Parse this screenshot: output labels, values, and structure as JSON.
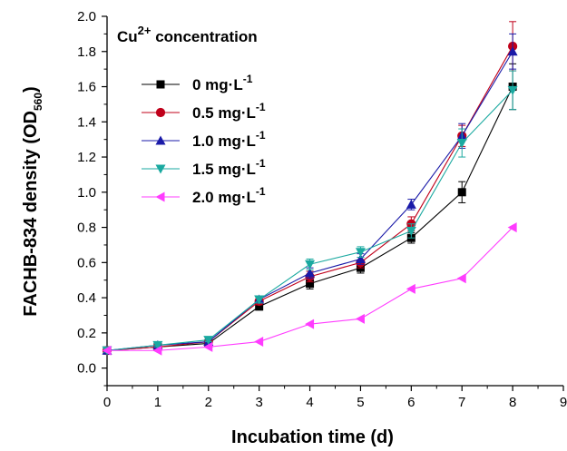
{
  "chart_data": {
    "type": "line",
    "xlabel": "Incubation time (d)",
    "ylabel_main": "FACHB-834 density (OD",
    "ylabel_sub": "560",
    "ylabel_close": ")",
    "xlim": [
      0,
      9
    ],
    "ylim": [
      -0.1,
      2.0
    ],
    "x_ticks": [
      0,
      1,
      2,
      3,
      4,
      5,
      6,
      7,
      8,
      9
    ],
    "y_ticks": [
      0.0,
      0.2,
      0.4,
      0.6,
      0.8,
      1.0,
      1.2,
      1.4,
      1.6,
      1.8,
      2.0
    ],
    "x_tick_labels": [
      "0",
      "1",
      "2",
      "3",
      "4",
      "5",
      "6",
      "7",
      "8",
      "9"
    ],
    "y_tick_labels": [
      "0.0",
      "0.2",
      "0.4",
      "0.6",
      "0.8",
      "1.0",
      "1.2",
      "1.4",
      "1.6",
      "1.8",
      "2.0"
    ],
    "grid": false,
    "legend_title_main": "Cu",
    "legend_title_sup": "2+",
    "legend_title_rest": " concentration",
    "legend_placement": "top-left",
    "x": [
      0,
      1,
      2,
      3,
      4,
      5,
      6,
      7,
      8
    ],
    "series": [
      {
        "label_main": "0   mg·L",
        "label_sup": "-1",
        "color": "#000000",
        "marker": "square",
        "values": [
          0.1,
          0.12,
          0.14,
          0.35,
          0.48,
          0.57,
          0.74,
          1.0,
          1.6
        ],
        "errors": [
          0.01,
          0.01,
          0.01,
          0.02,
          0.03,
          0.03,
          0.03,
          0.06,
          0.13
        ]
      },
      {
        "label_main": "0.5 mg·L",
        "label_sup": "-1",
        "color": "#c0001a",
        "marker": "circle",
        "values": [
          0.1,
          0.12,
          0.15,
          0.38,
          0.52,
          0.6,
          0.82,
          1.32,
          1.83
        ],
        "errors": [
          0.01,
          0.01,
          0.01,
          0.02,
          0.03,
          0.03,
          0.04,
          0.06,
          0.14
        ]
      },
      {
        "label_main": "1.0 mg·L",
        "label_sup": "-1",
        "color": "#1a1aa8",
        "marker": "triangle-up",
        "values": [
          0.1,
          0.13,
          0.15,
          0.39,
          0.54,
          0.62,
          0.93,
          1.32,
          1.8
        ],
        "errors": [
          0.01,
          0.01,
          0.01,
          0.02,
          0.03,
          0.03,
          0.03,
          0.07,
          0.1
        ]
      },
      {
        "label_main": "1.5 mg·L",
        "label_sup": "-1",
        "color": "#1aa9a0",
        "marker": "triangle-down",
        "values": [
          0.1,
          0.13,
          0.16,
          0.39,
          0.59,
          0.66,
          0.78,
          1.28,
          1.58
        ],
        "errors": [
          0.01,
          0.01,
          0.01,
          0.02,
          0.03,
          0.03,
          0.04,
          0.08,
          0.11
        ]
      },
      {
        "label_main": "2.0 mg·L",
        "label_sup": "-1",
        "color": "#ff3cff",
        "marker": "triangle-left",
        "values": [
          0.1,
          0.1,
          0.12,
          0.15,
          0.25,
          0.28,
          0.45,
          0.51,
          0.8
        ],
        "errors": [
          0,
          0,
          0,
          0,
          0,
          0,
          0,
          0,
          0
        ]
      }
    ]
  }
}
